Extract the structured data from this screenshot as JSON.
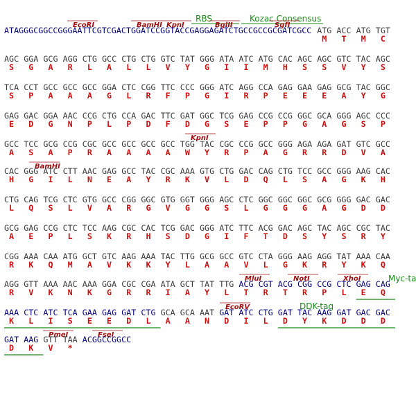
{
  "labels": {
    "rbs": "RBS",
    "kozak": "Kozac Consensus",
    "myc": "Myc-tag",
    "ddk": "DDK-tag"
  },
  "sites": {
    "r0": [
      "EcoRI",
      "BamHI",
      "KpnI",
      "BglII",
      "SgfI"
    ],
    "r4": [
      "KpnI"
    ],
    "r5": [
      "BamHI"
    ],
    "r9": [
      "MluI",
      "NotI",
      "XhoI"
    ],
    "r10": [
      "EcoRV"
    ],
    "r11": [
      "PmeI",
      "FseI"
    ]
  },
  "colors": {
    "codon": "#3a3a3a",
    "tag_codon": "#000080",
    "amino_acid": "#cc1010",
    "underline": "#1a8a1a"
  },
  "rows": [
    {
      "prefix": "ATAGGGCGGCCGGGAATTCGTCGACTGGATCCGGTACCGAGGAGATCTGCCGCCGCGATCGCC",
      "codons": [
        "ATG",
        "ACC",
        "ATG",
        "TGT"
      ],
      "amino_acids": [
        "M",
        "T",
        "M",
        "C"
      ]
    },
    {
      "codons": [
        "AGC",
        "GGA",
        "GCG",
        "AGG",
        "CTG",
        "GCC",
        "CTG",
        "CTG",
        "GTC",
        "TAT",
        "GGG",
        "ATA",
        "ATC",
        "ATG",
        "CAC",
        "AGC",
        "AGC",
        "GTC",
        "TAC",
        "AGC"
      ],
      "amino_acids": [
        "S",
        "G",
        "A",
        "R",
        "L",
        "A",
        "L",
        "L",
        "V",
        "Y",
        "G",
        "I",
        "I",
        "M",
        "H",
        "S",
        "S",
        "V",
        "Y",
        "S"
      ]
    },
    {
      "codons": [
        "TCA",
        "CCT",
        "GCC",
        "GCC",
        "GCC",
        "GGA",
        "CTC",
        "CGG",
        "TTC",
        "CCC",
        "GGG",
        "ATC",
        "AGG",
        "CCA",
        "GAG",
        "GAA",
        "GAG",
        "GCG",
        "TAC",
        "GGC"
      ],
      "amino_acids": [
        "S",
        "P",
        "A",
        "A",
        "A",
        "G",
        "L",
        "R",
        "F",
        "P",
        "G",
        "I",
        "R",
        "P",
        "E",
        "E",
        "E",
        "A",
        "Y",
        "G"
      ]
    },
    {
      "codons": [
        "GAG",
        "GAC",
        "GGA",
        "AAC",
        "CCG",
        "CTG",
        "CCA",
        "GAC",
        "TTC",
        "GAT",
        "GGC",
        "TCG",
        "GAG",
        "CCG",
        "CCG",
        "GGC",
        "GCA",
        "GGG",
        "AGC",
        "CCC"
      ],
      "amino_acids": [
        "E",
        "D",
        "G",
        "N",
        "P",
        "L",
        "P",
        "D",
        "F",
        "D",
        "G",
        "S",
        "E",
        "P",
        "P",
        "G",
        "A",
        "G",
        "S",
        "P"
      ]
    },
    {
      "codons": [
        "GCC",
        "TCC",
        "GCG",
        "CCG",
        "CGC",
        "GCC",
        "GCC",
        "GCC",
        "GCC",
        "TGG",
        "TAC",
        "CGC",
        "CCG",
        "GCC",
        "GGG",
        "AGA",
        "AGA",
        "GAT",
        "GTC",
        "GCC"
      ],
      "amino_acids": [
        "A",
        "S",
        "A",
        "P",
        "R",
        "A",
        "A",
        "A",
        "A",
        "W",
        "Y",
        "R",
        "P",
        "A",
        "G",
        "R",
        "R",
        "D",
        "V",
        "A"
      ]
    },
    {
      "codons": [
        "CAC",
        "GGG",
        "ATC",
        "CTT",
        "AAC",
        "GAG",
        "GCC",
        "TAC",
        "CGC",
        "AAA",
        "GTG",
        "CTG",
        "GAC",
        "CAG",
        "CTG",
        "TCC",
        "GCC",
        "GGG",
        "AAG",
        "CAC"
      ],
      "amino_acids": [
        "H",
        "G",
        "I",
        "L",
        "N",
        "E",
        "A",
        "Y",
        "R",
        "K",
        "V",
        "L",
        "D",
        "Q",
        "L",
        "S",
        "A",
        "G",
        "K",
        "H"
      ]
    },
    {
      "codons": [
        "CTG",
        "CAG",
        "TCG",
        "CTC",
        "GTG",
        "GCC",
        "CGG",
        "GGC",
        "GTG",
        "GGT",
        "GGG",
        "AGC",
        "CTC",
        "GGC",
        "GGC",
        "GGC",
        "GCG",
        "GGG",
        "GAC",
        "GAC"
      ],
      "amino_acids": [
        "L",
        "Q",
        "S",
        "L",
        "V",
        "A",
        "R",
        "G",
        "V",
        "G",
        "G",
        "S",
        "L",
        "G",
        "G",
        "G",
        "A",
        "G",
        "D",
        "D"
      ]
    },
    {
      "codons": [
        "GCG",
        "GAG",
        "CCG",
        "CTC",
        "TCC",
        "AAG",
        "CGC",
        "CAC",
        "TCG",
        "GAC",
        "GGG",
        "ATC",
        "TTC",
        "ACG",
        "GAC",
        "AGC",
        "TAC",
        "AGC",
        "CGC",
        "TAC"
      ],
      "amino_acids": [
        "A",
        "E",
        "P",
        "L",
        "S",
        "K",
        "R",
        "H",
        "S",
        "D",
        "G",
        "I",
        "F",
        "T",
        "D",
        "S",
        "Y",
        "S",
        "R",
        "Y"
      ]
    },
    {
      "codons": [
        "CGG",
        "AAA",
        "CAA",
        "ATG",
        "GCT",
        "GTC",
        "AAG",
        "AAA",
        "TAC",
        "TTG",
        "GCG",
        "GCC",
        "GTC",
        "CTA",
        "GGG",
        "AAG",
        "AGG",
        "TAT",
        "AAA",
        "CAA"
      ],
      "amino_acids": [
        "R",
        "K",
        "Q",
        "M",
        "A",
        "V",
        "K",
        "K",
        "Y",
        "L",
        "A",
        "A",
        "V",
        "L",
        "G",
        "K",
        "R",
        "Y",
        "K",
        "Q"
      ]
    },
    {
      "codons": [
        "AGG",
        "GTT",
        "AAA",
        "AAC",
        "AAA",
        "GGA",
        "CGC",
        "CGA",
        "ATA",
        "GCT",
        "TAT",
        "TTG",
        "ACG",
        "CGT",
        "ACG",
        "CGG",
        "CCG",
        "CTC",
        "GAG",
        "CAG"
      ],
      "amino_acids": [
        "R",
        "V",
        "K",
        "N",
        "K",
        "G",
        "R",
        "R",
        "I",
        "A",
        "Y",
        "L",
        "T",
        "R",
        "T",
        "R",
        "P",
        "L",
        "E",
        "Q"
      ],
      "tag_codons": [
        12,
        13,
        14,
        15,
        16,
        17,
        18,
        19
      ]
    },
    {
      "codons": [
        "AAA",
        "CTC",
        "ATC",
        "TCA",
        "GAA",
        "GAG",
        "GAT",
        "CTG",
        "GCA",
        "GCA",
        "AAT",
        "GAT",
        "ATC",
        "CTG",
        "GAT",
        "TAC",
        "AAG",
        "GAT",
        "GAC",
        "GAC"
      ],
      "amino_acids": [
        "K",
        "L",
        "I",
        "S",
        "E",
        "E",
        "D",
        "L",
        "A",
        "A",
        "N",
        "D",
        "I",
        "L",
        "D",
        "Y",
        "K",
        "D",
        "D",
        "D"
      ],
      "tag_codons": [
        0,
        1,
        2,
        3,
        4,
        5,
        6,
        7,
        11,
        12,
        13,
        14,
        15,
        16,
        17,
        18,
        19
      ]
    },
    {
      "codons": [
        "GAT",
        "AAG",
        "GTT",
        "TAA"
      ],
      "amino_acids": [
        "D",
        "K",
        "V",
        "*"
      ],
      "tag_codons": [
        0,
        1
      ],
      "suffix": "ACGGCCGGCC"
    }
  ]
}
